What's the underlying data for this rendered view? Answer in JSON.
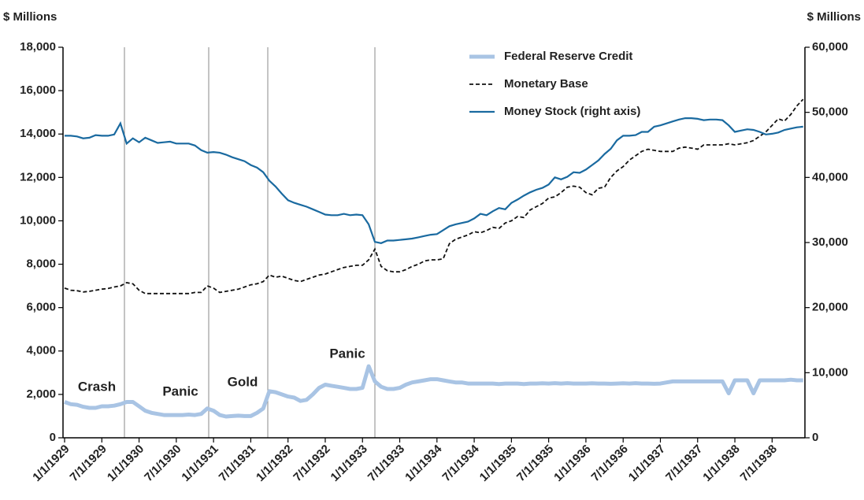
{
  "chart_data": {
    "type": "line",
    "y_label": "$ Millions",
    "y2_label": "$ Millions",
    "categories": [
      "1/1/1929",
      null,
      null,
      null,
      null,
      null,
      "7/1/1929",
      null,
      null,
      null,
      null,
      null,
      "1/1/1930",
      null,
      null,
      null,
      null,
      null,
      "7/1/1930",
      null,
      null,
      null,
      null,
      null,
      "1/1/1931",
      null,
      null,
      null,
      null,
      null,
      "7/1/1931",
      null,
      null,
      null,
      null,
      null,
      "1/1/1932",
      null,
      null,
      null,
      null,
      null,
      "7/1/1932",
      null,
      null,
      null,
      null,
      null,
      "1/1/1933",
      null,
      null,
      null,
      null,
      null,
      "7/1/1933",
      null,
      null,
      null,
      null,
      null,
      "1/1/1934",
      null,
      null,
      null,
      null,
      null,
      "7/1/1934",
      null,
      null,
      null,
      null,
      null,
      "1/1/1935",
      null,
      null,
      null,
      null,
      null,
      "7/1/1935",
      null,
      null,
      null,
      null,
      null,
      "1/1/1936",
      null,
      null,
      null,
      null,
      null,
      "7/1/1936",
      null,
      null,
      null,
      null,
      null,
      "1/1/1937",
      null,
      null,
      null,
      null,
      null,
      "7/1/1937",
      null,
      null,
      null,
      null,
      null,
      "1/1/1938",
      null,
      null,
      null,
      null,
      null,
      "7/1/1938",
      null,
      null,
      null,
      null,
      null
    ],
    "series": [
      {
        "name": "Federal Reserve Credit",
        "color": "#a9c4e4",
        "style": "thick",
        "values": [
          1650,
          1550,
          1520,
          1430,
          1380,
          1380,
          1450,
          1450,
          1480,
          1550,
          1650,
          1650,
          1450,
          1250,
          1150,
          1100,
          1050,
          1050,
          1050,
          1050,
          1070,
          1050,
          1100,
          1350,
          1250,
          1050,
          980,
          1000,
          1020,
          1000,
          1000,
          1150,
          1350,
          2150,
          2100,
          2000,
          1900,
          1850,
          1700,
          1750,
          2000,
          2300,
          2450,
          2400,
          2350,
          2300,
          2250,
          2250,
          2300,
          3300,
          2600,
          2350,
          2250,
          2250,
          2300,
          2450,
          2550,
          2600,
          2650,
          2700,
          2700,
          2650,
          2600,
          2550,
          2550,
          2500,
          2500,
          2500,
          2500,
          2500,
          2480,
          2500,
          2500,
          2500,
          2480,
          2500,
          2500,
          2510,
          2500,
          2520,
          2500,
          2520,
          2500,
          2500,
          2500,
          2510,
          2500,
          2500,
          2490,
          2500,
          2510,
          2500,
          2520,
          2500,
          2500,
          2490,
          2500,
          2550,
          2600,
          2600,
          2600,
          2600,
          2600,
          2600,
          2600,
          2600,
          2600,
          2050,
          2650,
          2650,
          2650,
          2050,
          2650,
          2650,
          2650,
          2650,
          2650,
          2680,
          2650,
          2650
        ]
      },
      {
        "name": "Monetary Base",
        "color": "#111111",
        "style": "dashed",
        "values": [
          6900,
          6800,
          6780,
          6720,
          6750,
          6800,
          6850,
          6880,
          6950,
          7000,
          7150,
          7100,
          6800,
          6650,
          6650,
          6650,
          6650,
          6650,
          6650,
          6650,
          6650,
          6700,
          6700,
          7000,
          6900,
          6700,
          6750,
          6800,
          6850,
          6950,
          7050,
          7100,
          7200,
          7500,
          7400,
          7450,
          7350,
          7250,
          7200,
          7300,
          7400,
          7500,
          7550,
          7650,
          7750,
          7850,
          7900,
          7950,
          7950,
          8200,
          8700,
          7900,
          7700,
          7650,
          7650,
          7750,
          7900,
          8000,
          8150,
          8200,
          8200,
          8250,
          8950,
          9150,
          9250,
          9350,
          9500,
          9450,
          9550,
          9700,
          9650,
          9900,
          10000,
          10200,
          10150,
          10500,
          10650,
          10800,
          11050,
          11100,
          11300,
          11550,
          11600,
          11550,
          11300,
          11200,
          11500,
          11550,
          12000,
          12300,
          12500,
          12800,
          13000,
          13200,
          13300,
          13250,
          13200,
          13200,
          13200,
          13350,
          13400,
          13350,
          13300,
          13500,
          13500,
          13500,
          13500,
          13550,
          13500,
          13550,
          13600,
          13700,
          13900,
          14100,
          14400,
          14700,
          14600,
          14900,
          15300,
          15600
        ]
      },
      {
        "name": "Money Stock (right axis)",
        "color": "#1a6aa0",
        "style": "solid",
        "axis": "y2",
        "values": [
          46400,
          46400,
          46300,
          46000,
          46100,
          46500,
          46400,
          46400,
          46600,
          48300,
          45200,
          46000,
          45400,
          46100,
          45700,
          45300,
          45400,
          45500,
          45200,
          45200,
          45200,
          44900,
          44200,
          43800,
          43900,
          43800,
          43500,
          43100,
          42800,
          42500,
          41900,
          41500,
          40800,
          39500,
          38600,
          37500,
          36500,
          36100,
          35800,
          35500,
          35100,
          34700,
          34300,
          34200,
          34200,
          34400,
          34200,
          34300,
          34200,
          32800,
          30100,
          29900,
          30300,
          30300,
          30400,
          30500,
          30600,
          30800,
          31000,
          31200,
          31300,
          31900,
          32500,
          32800,
          33000,
          33200,
          33700,
          34400,
          34200,
          34800,
          35300,
          35100,
          36100,
          36600,
          37200,
          37700,
          38100,
          38400,
          38900,
          40000,
          39700,
          40100,
          40800,
          40700,
          41200,
          41900,
          42600,
          43600,
          44400,
          45700,
          46400,
          46400,
          46500,
          47000,
          47000,
          47800,
          48000,
          48300,
          48600,
          48900,
          49100,
          49100,
          49000,
          48800,
          48900,
          48900,
          48800,
          48000,
          47000,
          47200,
          47400,
          47300,
          47000,
          46600,
          46700,
          46900,
          47300,
          47500,
          47700,
          47800
        ]
      }
    ],
    "ylim": [
      0,
      18000
    ],
    "yticks": [
      0,
      {
        "value": 2000,
        "label": "2,000"
      },
      {
        "value": 4000,
        "label": "4,000"
      },
      {
        "value": 6000,
        "label": "6,000"
      },
      {
        "value": 8000,
        "label": "8,000"
      },
      {
        "value": 10000,
        "label": "10,000"
      },
      {
        "value": 12000,
        "label": "12,000"
      },
      {
        "value": 14000,
        "label": "14,000"
      },
      {
        "value": 16000,
        "label": "16,000"
      },
      {
        "value": 18000,
        "label": "18,000"
      }
    ],
    "y2lim": [
      0,
      60000
    ],
    "y2ticks": [
      0,
      {
        "value": 10000,
        "label": "10,000"
      },
      {
        "value": 20000,
        "label": "20,000"
      },
      {
        "value": 30000,
        "label": "30,000"
      },
      {
        "value": 40000,
        "label": "40,000"
      },
      {
        "value": 50000,
        "label": "50,000"
      },
      {
        "value": 60000,
        "label": "60,000"
      }
    ],
    "annotations": [
      "Crash",
      "Panic",
      "Gold",
      "Panic"
    ],
    "legend": "top-right"
  }
}
